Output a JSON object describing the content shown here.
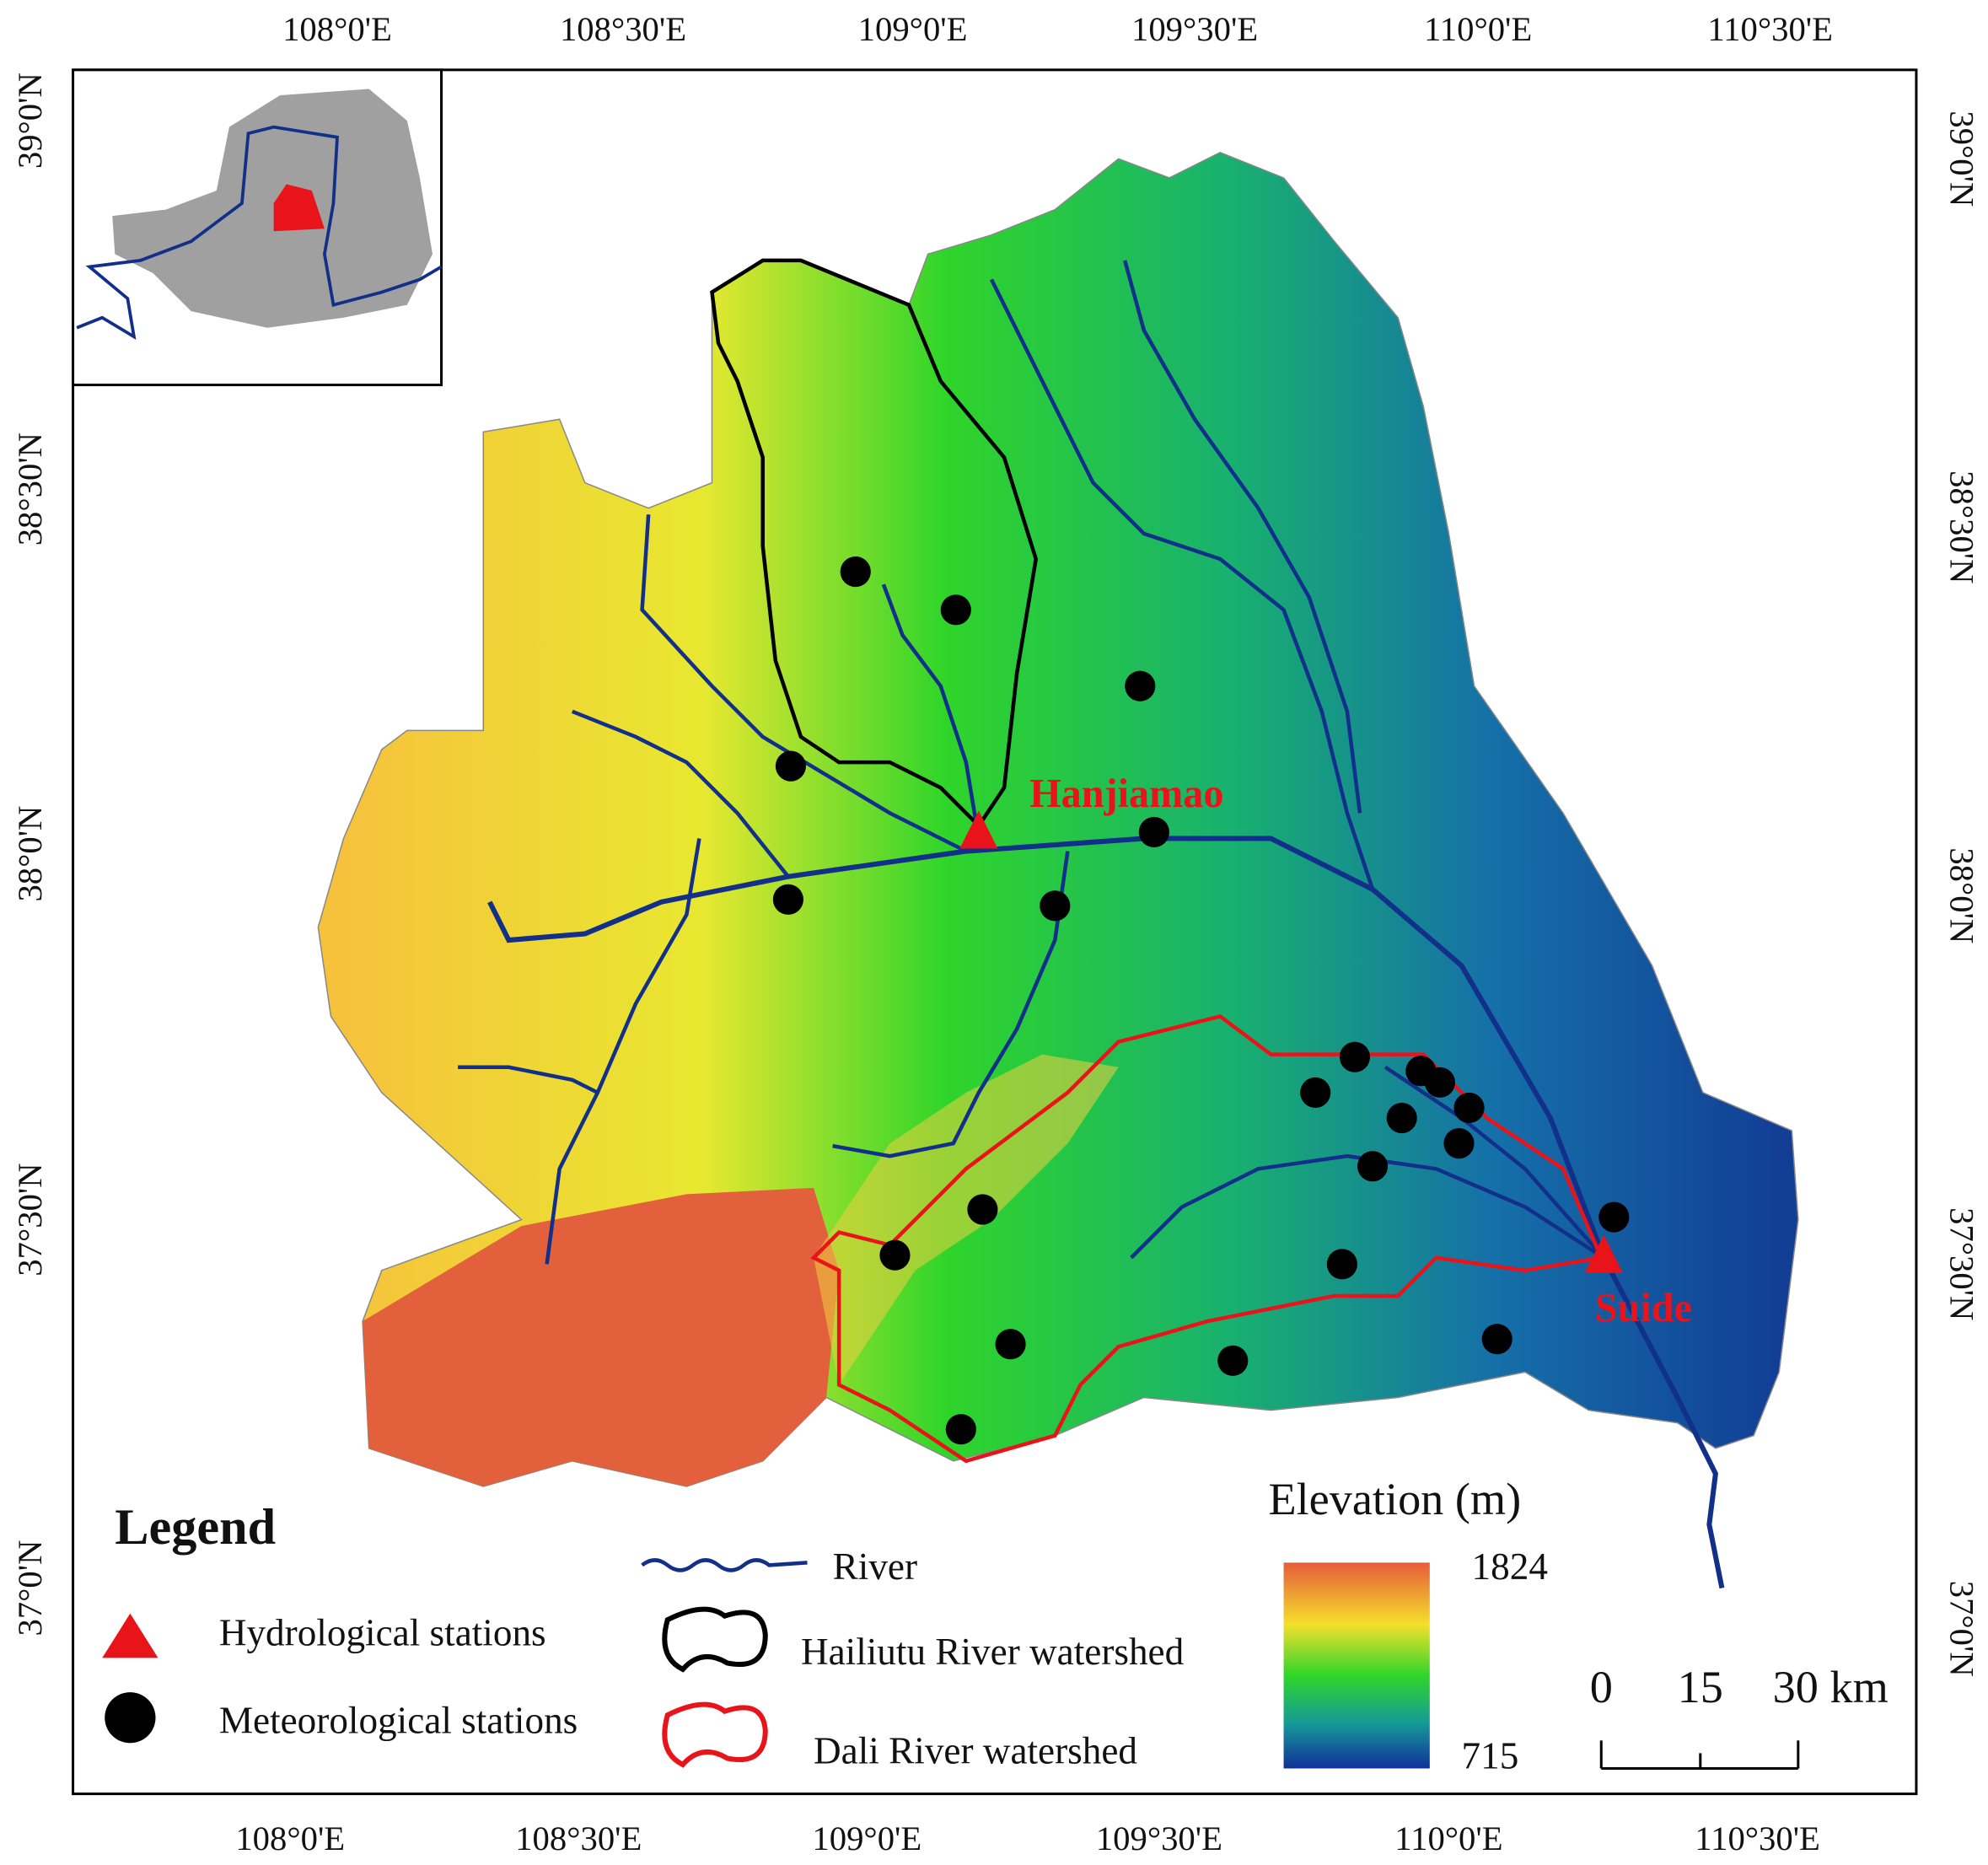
{
  "graticule": {
    "top": [
      "108°0'E",
      "108°30'E",
      "109°0'E",
      "109°30'E",
      "110°0'E",
      "110°30'E"
    ],
    "bottom": [
      "108°0'E",
      "108°30'E",
      "109°0'E",
      "109°30'E",
      "110°0'E",
      "110°30'E"
    ],
    "left": [
      "39°0'N",
      "38°30'N",
      "38°0'N",
      "37°30'N",
      "37°0'N"
    ],
    "right": [
      "39°0'N",
      "38°30'N",
      "38°0'N",
      "37°30'N",
      "37°0'N"
    ]
  },
  "stations": {
    "hydrological": [
      "Hanjiamao",
      "Suide"
    ]
  },
  "legend": {
    "title": "Legend",
    "items": [
      "Hydrological stations",
      "Meteorological stations",
      "River",
      "Hailiutu River watershed",
      "Dali River watershed"
    ]
  },
  "elevation": {
    "title": "Elevation (m)",
    "max": "1824",
    "min": "715"
  },
  "scale_bar": {
    "labels": [
      "0",
      "15",
      "30 km"
    ]
  }
}
